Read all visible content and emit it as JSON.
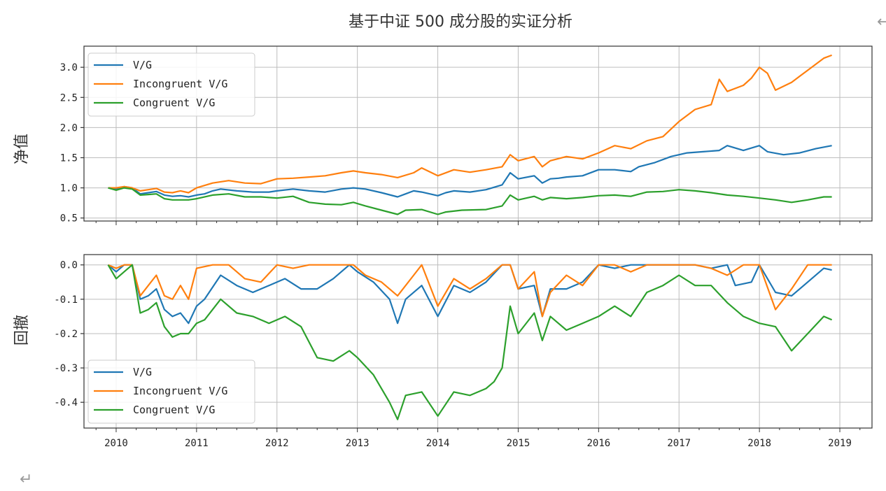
{
  "page": {
    "return_mark": "↵",
    "corner_mark": "↩"
  },
  "chart_data": [
    {
      "type": "line",
      "title": "基于中证 500 成分股的实证分析",
      "ylabel": "净值",
      "xlabel": "",
      "xlim": [
        2009.6,
        2019.4
      ],
      "ylim": [
        0.45,
        3.35
      ],
      "yticks": [
        0.5,
        1.0,
        1.5,
        2.0,
        2.5,
        3.0
      ],
      "ytick_labels": [
        "0.5",
        "1.0",
        "1.5",
        "2.0",
        "2.5",
        "3.0"
      ],
      "legend_position": "upper-left",
      "grid": true,
      "series": [
        {
          "name": "V/G",
          "color": "#1f77b4",
          "x": [
            2009.9,
            2010.0,
            2010.1,
            2010.2,
            2010.3,
            2010.4,
            2010.5,
            2010.6,
            2010.7,
            2010.8,
            2010.9,
            2011.0,
            2011.1,
            2011.2,
            2011.3,
            2011.5,
            2011.7,
            2011.9,
            2012.0,
            2012.2,
            2012.4,
            2012.6,
            2012.8,
            2012.95,
            2013.1,
            2013.3,
            2013.5,
            2013.6,
            2013.7,
            2013.8,
            2014.0,
            2014.1,
            2014.2,
            2014.4,
            2014.6,
            2014.8,
            2014.9,
            2015.0,
            2015.2,
            2015.3,
            2015.4,
            2015.5,
            2015.6,
            2015.8,
            2016.0,
            2016.2,
            2016.4,
            2016.5,
            2016.7,
            2016.9,
            2017.1,
            2017.3,
            2017.5,
            2017.6,
            2017.8,
            2018.0,
            2018.1,
            2018.3,
            2018.5,
            2018.7,
            2018.9
          ],
          "y": [
            1.0,
            0.98,
            1.02,
            1.0,
            0.9,
            0.92,
            0.94,
            0.88,
            0.86,
            0.87,
            0.85,
            0.88,
            0.9,
            0.95,
            0.98,
            0.95,
            0.93,
            0.93,
            0.95,
            0.98,
            0.95,
            0.93,
            0.98,
            1.0,
            0.98,
            0.92,
            0.85,
            0.9,
            0.95,
            0.93,
            0.87,
            0.92,
            0.95,
            0.93,
            0.97,
            1.05,
            1.25,
            1.15,
            1.2,
            1.08,
            1.15,
            1.16,
            1.18,
            1.2,
            1.3,
            1.3,
            1.27,
            1.35,
            1.42,
            1.52,
            1.58,
            1.6,
            1.62,
            1.7,
            1.62,
            1.7,
            1.6,
            1.55,
            1.58,
            1.65,
            1.7
          ]
        },
        {
          "name": "Incongruent V/G",
          "color": "#ff7f0e",
          "x": [
            2009.9,
            2010.0,
            2010.1,
            2010.2,
            2010.3,
            2010.4,
            2010.5,
            2010.6,
            2010.7,
            2010.8,
            2010.9,
            2011.0,
            2011.2,
            2011.4,
            2011.6,
            2011.8,
            2012.0,
            2012.2,
            2012.4,
            2012.6,
            2012.8,
            2012.95,
            2013.1,
            2013.3,
            2013.5,
            2013.7,
            2013.8,
            2014.0,
            2014.2,
            2014.4,
            2014.6,
            2014.8,
            2014.9,
            2015.0,
            2015.2,
            2015.3,
            2015.4,
            2015.6,
            2015.8,
            2016.0,
            2016.2,
            2016.4,
            2016.6,
            2016.8,
            2017.0,
            2017.2,
            2017.4,
            2017.5,
            2017.6,
            2017.8,
            2017.9,
            2018.0,
            2018.1,
            2018.2,
            2018.4,
            2018.6,
            2018.8,
            2018.9
          ],
          "y": [
            1.0,
            1.0,
            1.02,
            1.0,
            0.95,
            0.97,
            0.99,
            0.93,
            0.92,
            0.95,
            0.92,
            1.0,
            1.08,
            1.12,
            1.08,
            1.07,
            1.15,
            1.16,
            1.18,
            1.2,
            1.25,
            1.28,
            1.25,
            1.22,
            1.17,
            1.25,
            1.33,
            1.2,
            1.3,
            1.26,
            1.3,
            1.35,
            1.55,
            1.45,
            1.52,
            1.35,
            1.45,
            1.52,
            1.48,
            1.58,
            1.7,
            1.65,
            1.78,
            1.85,
            2.1,
            2.3,
            2.38,
            2.8,
            2.6,
            2.7,
            2.82,
            3.0,
            2.9,
            2.62,
            2.75,
            2.95,
            3.15,
            3.2
          ]
        },
        {
          "name": "Congruent V/G",
          "color": "#2ca02c",
          "x": [
            2009.9,
            2010.0,
            2010.1,
            2010.2,
            2010.3,
            2010.4,
            2010.5,
            2010.6,
            2010.7,
            2010.8,
            2010.9,
            2011.0,
            2011.2,
            2011.4,
            2011.6,
            2011.8,
            2012.0,
            2012.2,
            2012.4,
            2012.6,
            2012.8,
            2012.95,
            2013.1,
            2013.3,
            2013.5,
            2013.6,
            2013.8,
            2014.0,
            2014.1,
            2014.3,
            2014.6,
            2014.8,
            2014.9,
            2015.0,
            2015.2,
            2015.3,
            2015.4,
            2015.6,
            2015.8,
            2016.0,
            2016.2,
            2016.4,
            2016.6,
            2016.8,
            2017.0,
            2017.2,
            2017.4,
            2017.6,
            2017.8,
            2018.0,
            2018.2,
            2018.4,
            2018.6,
            2018.8,
            2018.9
          ],
          "y": [
            1.0,
            0.96,
            1.0,
            0.98,
            0.88,
            0.89,
            0.9,
            0.82,
            0.8,
            0.8,
            0.8,
            0.82,
            0.88,
            0.9,
            0.85,
            0.85,
            0.83,
            0.86,
            0.76,
            0.73,
            0.72,
            0.76,
            0.7,
            0.63,
            0.56,
            0.63,
            0.64,
            0.56,
            0.6,
            0.63,
            0.64,
            0.7,
            0.88,
            0.8,
            0.86,
            0.8,
            0.84,
            0.82,
            0.84,
            0.87,
            0.88,
            0.86,
            0.93,
            0.94,
            0.97,
            0.95,
            0.92,
            0.88,
            0.86,
            0.83,
            0.8,
            0.76,
            0.8,
            0.85,
            0.85
          ]
        }
      ]
    },
    {
      "type": "line",
      "title": "",
      "ylabel": "回撤",
      "xlabel": "",
      "xlim": [
        2009.6,
        2019.4
      ],
      "ylim": [
        -0.475,
        0.03
      ],
      "yticks": [
        -0.4,
        -0.3,
        -0.2,
        -0.1,
        0.0
      ],
      "ytick_labels": [
        "-0.4",
        "-0.3",
        "-0.2",
        "-0.1",
        "0.0"
      ],
      "xticks": [
        2010,
        2011,
        2012,
        2013,
        2014,
        2015,
        2016,
        2017,
        2018,
        2019
      ],
      "xtick_labels": [
        "2010",
        "2011",
        "2012",
        "2013",
        "2014",
        "2015",
        "2016",
        "2017",
        "2018",
        "2019"
      ],
      "legend_position": "lower-left",
      "grid": true,
      "series": [
        {
          "name": "V/G",
          "color": "#1f77b4",
          "x": [
            2009.9,
            2010.0,
            2010.1,
            2010.2,
            2010.3,
            2010.4,
            2010.5,
            2010.6,
            2010.7,
            2010.8,
            2010.9,
            2011.0,
            2011.1,
            2011.3,
            2011.5,
            2011.7,
            2011.9,
            2012.1,
            2012.3,
            2012.5,
            2012.7,
            2012.9,
            2013.0,
            2013.2,
            2013.4,
            2013.5,
            2013.6,
            2013.8,
            2014.0,
            2014.2,
            2014.4,
            2014.6,
            2014.8,
            2014.9,
            2015.0,
            2015.2,
            2015.3,
            2015.4,
            2015.6,
            2015.8,
            2016.0,
            2016.2,
            2016.4,
            2016.6,
            2016.8,
            2017.0,
            2017.2,
            2017.4,
            2017.6,
            2017.7,
            2017.9,
            2018.0,
            2018.2,
            2018.4,
            2018.6,
            2018.8,
            2018.9
          ],
          "y": [
            0.0,
            -0.02,
            0.0,
            0.0,
            -0.1,
            -0.09,
            -0.07,
            -0.13,
            -0.15,
            -0.14,
            -0.17,
            -0.12,
            -0.1,
            -0.03,
            -0.06,
            -0.08,
            -0.06,
            -0.04,
            -0.07,
            -0.07,
            -0.04,
            0.0,
            -0.02,
            -0.05,
            -0.1,
            -0.17,
            -0.1,
            -0.06,
            -0.15,
            -0.06,
            -0.08,
            -0.05,
            0.0,
            0.0,
            -0.07,
            -0.06,
            -0.15,
            -0.07,
            -0.07,
            -0.05,
            0.0,
            -0.01,
            0.0,
            0.0,
            0.0,
            0.0,
            0.0,
            -0.01,
            0.0,
            -0.06,
            -0.05,
            0.0,
            -0.08,
            -0.09,
            -0.05,
            -0.01,
            -0.015
          ]
        },
        {
          "name": "Incongruent V/G",
          "color": "#ff7f0e",
          "x": [
            2009.9,
            2010.0,
            2010.1,
            2010.2,
            2010.3,
            2010.4,
            2010.5,
            2010.6,
            2010.7,
            2010.8,
            2010.9,
            2011.0,
            2011.2,
            2011.4,
            2011.6,
            2011.8,
            2012.0,
            2012.2,
            2012.4,
            2012.6,
            2012.8,
            2012.95,
            2013.1,
            2013.3,
            2013.5,
            2013.7,
            2013.8,
            2014.0,
            2014.2,
            2014.4,
            2014.6,
            2014.8,
            2014.9,
            2015.0,
            2015.2,
            2015.3,
            2015.4,
            2015.6,
            2015.8,
            2016.0,
            2016.2,
            2016.4,
            2016.6,
            2016.8,
            2017.0,
            2017.2,
            2017.4,
            2017.6,
            2017.8,
            2018.0,
            2018.2,
            2018.4,
            2018.6,
            2018.8,
            2018.9
          ],
          "y": [
            0.0,
            -0.01,
            0.0,
            0.0,
            -0.09,
            -0.06,
            -0.03,
            -0.09,
            -0.1,
            -0.06,
            -0.1,
            -0.01,
            0.0,
            0.0,
            -0.04,
            -0.05,
            0.0,
            -0.01,
            0.0,
            0.0,
            0.0,
            0.0,
            -0.03,
            -0.05,
            -0.09,
            -0.03,
            0.0,
            -0.12,
            -0.04,
            -0.07,
            -0.04,
            0.0,
            0.0,
            -0.07,
            -0.02,
            -0.15,
            -0.08,
            -0.03,
            -0.06,
            0.0,
            0.0,
            -0.02,
            0.0,
            0.0,
            0.0,
            0.0,
            -0.01,
            -0.03,
            0.0,
            0.0,
            -0.13,
            -0.07,
            0.0,
            0.0,
            0.0
          ]
        },
        {
          "name": "Congruent V/G",
          "color": "#2ca02c",
          "x": [
            2009.9,
            2010.0,
            2010.1,
            2010.2,
            2010.3,
            2010.4,
            2010.5,
            2010.6,
            2010.7,
            2010.8,
            2010.9,
            2011.0,
            2011.1,
            2011.3,
            2011.5,
            2011.7,
            2011.9,
            2012.1,
            2012.3,
            2012.5,
            2012.7,
            2012.9,
            2013.0,
            2013.2,
            2013.4,
            2013.5,
            2013.6,
            2013.8,
            2014.0,
            2014.2,
            2014.4,
            2014.6,
            2014.7,
            2014.8,
            2014.9,
            2015.0,
            2015.2,
            2015.3,
            2015.4,
            2015.6,
            2015.8,
            2016.0,
            2016.2,
            2016.4,
            2016.6,
            2016.8,
            2017.0,
            2017.2,
            2017.4,
            2017.6,
            2017.8,
            2018.0,
            2018.2,
            2018.4,
            2018.6,
            2018.8,
            2018.9
          ],
          "y": [
            0.0,
            -0.04,
            -0.02,
            0.0,
            -0.14,
            -0.13,
            -0.11,
            -0.18,
            -0.21,
            -0.2,
            -0.2,
            -0.17,
            -0.16,
            -0.1,
            -0.14,
            -0.15,
            -0.17,
            -0.15,
            -0.18,
            -0.27,
            -0.28,
            -0.25,
            -0.27,
            -0.32,
            -0.4,
            -0.45,
            -0.38,
            -0.37,
            -0.44,
            -0.37,
            -0.38,
            -0.36,
            -0.34,
            -0.3,
            -0.12,
            -0.2,
            -0.14,
            -0.22,
            -0.15,
            -0.19,
            -0.17,
            -0.15,
            -0.12,
            -0.15,
            -0.08,
            -0.06,
            -0.03,
            -0.06,
            -0.06,
            -0.11,
            -0.15,
            -0.17,
            -0.18,
            -0.25,
            -0.2,
            -0.15,
            -0.16
          ]
        }
      ]
    }
  ]
}
